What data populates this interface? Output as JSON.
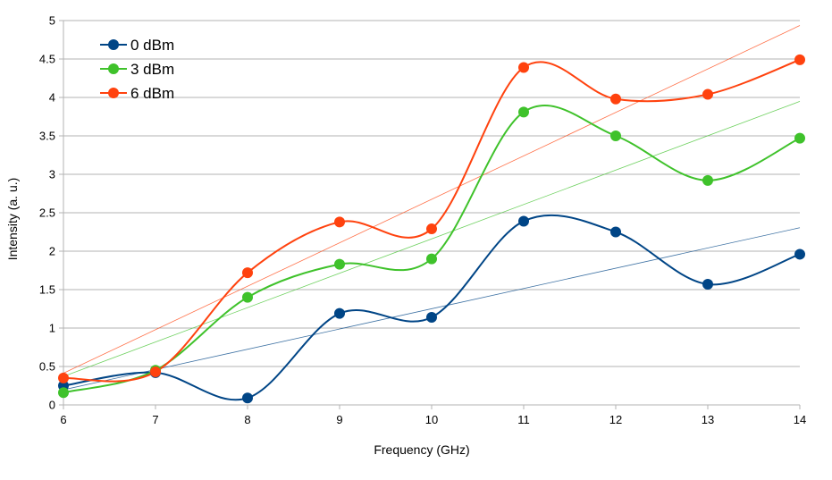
{
  "chart_data": {
    "type": "line",
    "xlabel": "Frequency (GHz)",
    "ylabel": "Intensity (a. u.)",
    "xlim": [
      6,
      14
    ],
    "ylim": [
      0,
      5
    ],
    "x_ticks": [
      "6",
      "7",
      "8",
      "9",
      "10",
      "11",
      "12",
      "13",
      "14"
    ],
    "y_ticks": [
      "0",
      "0.5",
      "1",
      "1.5",
      "2",
      "2.5",
      "3",
      "3.5",
      "4",
      "4.5",
      "5"
    ],
    "x": [
      6,
      7,
      8,
      9,
      10,
      11,
      12,
      13,
      14
    ],
    "grid": "horizontal",
    "legend_position": "top-left",
    "smoothed": true,
    "trendlines": "linear",
    "series": [
      {
        "name": "0 dBm",
        "color": "#004586",
        "values": [
          0.25,
          0.42,
          0.09,
          1.19,
          1.14,
          2.39,
          2.25,
          1.57,
          1.96
        ]
      },
      {
        "name": "3 dBm",
        "color": "#3fc22b",
        "values": [
          0.16,
          0.45,
          1.4,
          1.83,
          1.9,
          3.81,
          3.5,
          2.92,
          3.47
        ]
      },
      {
        "name": "6 dBm",
        "color": "#ff420e",
        "values": [
          0.35,
          0.43,
          1.72,
          2.38,
          2.29,
          4.39,
          3.98,
          4.04,
          4.49
        ]
      }
    ]
  }
}
